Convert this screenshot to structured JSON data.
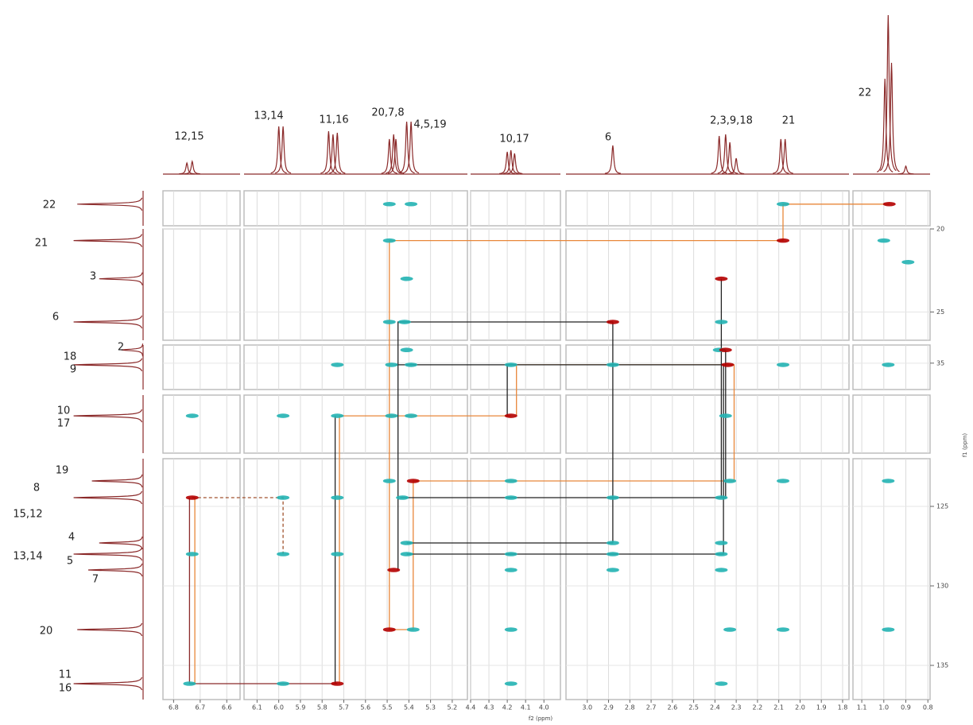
{
  "chart_data": {
    "type": "nmr2d",
    "x_label": "f2 (ppm)",
    "y_label": "f1 (ppm)",
    "xlim": [
      [
        6.84,
        6.55
      ],
      [
        6.16,
        5.13
      ],
      [
        4.4,
        3.91
      ],
      [
        3.1,
        1.77
      ],
      [
        1.14,
        0.79
      ]
    ],
    "ylim": [
      [
        13.5,
        15.6
      ],
      [
        20,
        26.7
      ],
      [
        33.9,
        36.6
      ],
      [
        46,
        49.5
      ],
      [
        122,
        137.15
      ]
    ],
    "xticks": [
      6.8,
      6.7,
      6.6,
      6.1,
      {
        "value": 6,
        "label": "6.0"
      },
      5.9,
      5.8,
      5.7,
      5.6,
      5.5,
      5.4,
      5.3,
      5.2,
      4.4,
      4.3,
      4.2,
      4.1,
      {
        "value": 4,
        "label": "4.0"
      },
      {
        "value": 3,
        "label": "3.0"
      },
      2.9,
      2.8,
      2.7,
      2.6,
      2.5,
      2.4,
      2.3,
      2.2,
      2.1,
      {
        "value": 2,
        "label": "2.0"
      },
      1.9,
      1.8,
      1.1,
      {
        "value": 1,
        "label": "1.0"
      },
      0.9,
      0.8
    ],
    "yticks": [
      20,
      25,
      35,
      125,
      130,
      135
    ],
    "grid": true,
    "projection_color": "#8b2a2a",
    "f2_labels": [
      "12,15",
      "13,14",
      "11,16",
      "20,7,8",
      "4,5,19",
      "10,17",
      "6",
      "2,3,9,18",
      "21",
      "22"
    ],
    "f1_labels": [
      "22",
      "21",
      "3",
      "6",
      "2",
      "18",
      "9",
      "10",
      "17",
      "19",
      "8",
      "15,12",
      "4",
      "13,14",
      "5",
      "7",
      "20",
      "11",
      "16"
    ],
    "f2_projection": [
      {
        "ppm": 6.75,
        "height": 0.07
      },
      {
        "ppm": 6.73,
        "height": 0.08
      },
      {
        "ppm": 6.0,
        "height": 0.3
      },
      {
        "ppm": 5.98,
        "height": 0.3
      },
      {
        "ppm": 5.77,
        "height": 0.27
      },
      {
        "ppm": 5.75,
        "height": 0.25
      },
      {
        "ppm": 5.73,
        "height": 0.26
      },
      {
        "ppm": 5.49,
        "height": 0.22
      },
      {
        "ppm": 5.47,
        "height": 0.25
      },
      {
        "ppm": 5.46,
        "height": 0.22
      },
      {
        "ppm": 5.41,
        "height": 0.33
      },
      {
        "ppm": 5.39,
        "height": 0.33
      },
      {
        "ppm": 4.2,
        "height": 0.14
      },
      {
        "ppm": 4.18,
        "height": 0.15
      },
      {
        "ppm": 4.16,
        "height": 0.13
      },
      {
        "ppm": 2.88,
        "height": 0.18
      },
      {
        "ppm": 2.38,
        "height": 0.24
      },
      {
        "ppm": 2.35,
        "height": 0.25
      },
      {
        "ppm": 2.33,
        "height": 0.2
      },
      {
        "ppm": 2.3,
        "height": 0.1
      },
      {
        "ppm": 2.09,
        "height": 0.22
      },
      {
        "ppm": 2.07,
        "height": 0.22
      },
      {
        "ppm": 0.995,
        "height": 0.6
      },
      {
        "ppm": 0.98,
        "height": 1.0
      },
      {
        "ppm": 0.965,
        "height": 0.7
      },
      {
        "ppm": 0.9,
        "height": 0.05
      }
    ],
    "f1_projection": [
      {
        "ppm": 14.3,
        "height": 0.9
      },
      {
        "ppm": 20.7,
        "height": 0.95
      },
      {
        "ppm": 23.0,
        "height": 0.6
      },
      {
        "ppm": 25.6,
        "height": 0.95
      },
      {
        "ppm": 34.2,
        "height": 0.3
      },
      {
        "ppm": 35.1,
        "height": 0.95
      },
      {
        "ppm": 47.25,
        "height": 0.95
      },
      {
        "ppm": 123.4,
        "height": 0.7
      },
      {
        "ppm": 124.45,
        "height": 0.95
      },
      {
        "ppm": 127.3,
        "height": 0.6
      },
      {
        "ppm": 128.0,
        "height": 0.95
      },
      {
        "ppm": 129.0,
        "height": 0.75
      },
      {
        "ppm": 132.75,
        "height": 0.9
      },
      {
        "ppm": 136.15,
        "height": 0.95
      }
    ],
    "cross_peaks": [
      {
        "x": 5.49,
        "y": 14.3,
        "color": "#22b3b3"
      },
      {
        "x": 5.39,
        "y": 14.3,
        "color": "#22b3b3"
      },
      {
        "x": 2.08,
        "y": 14.3,
        "color": "#22b3b3"
      },
      {
        "x": 0.975,
        "y": 14.3,
        "color": "#b40000"
      },
      {
        "x": 5.49,
        "y": 20.7,
        "color": "#22b3b3"
      },
      {
        "x": 2.08,
        "y": 20.7,
        "color": "#b40000"
      },
      {
        "x": 1.0,
        "y": 20.7,
        "color": "#22b3b3"
      },
      {
        "x": 0.89,
        "y": 22.0,
        "color": "#22b3b3"
      },
      {
        "x": 5.41,
        "y": 23.0,
        "color": "#22b3b3"
      },
      {
        "x": 2.37,
        "y": 23.0,
        "color": "#b40000"
      },
      {
        "x": 5.49,
        "y": 25.6,
        "color": "#22b3b3"
      },
      {
        "x": 5.42,
        "y": 25.6,
        "color": "#22b3b3"
      },
      {
        "x": 2.88,
        "y": 25.6,
        "color": "#b40000"
      },
      {
        "x": 2.37,
        "y": 25.6,
        "color": "#22b3b3"
      },
      {
        "x": 5.41,
        "y": 34.2,
        "color": "#22b3b3"
      },
      {
        "x": 2.38,
        "y": 34.2,
        "color": "#22b3b3"
      },
      {
        "x": 2.35,
        "y": 34.2,
        "color": "#b40000"
      },
      {
        "x": 5.73,
        "y": 35.1,
        "color": "#22b3b3"
      },
      {
        "x": 5.48,
        "y": 35.1,
        "color": "#22b3b3"
      },
      {
        "x": 5.39,
        "y": 35.1,
        "color": "#22b3b3"
      },
      {
        "x": 4.18,
        "y": 35.1,
        "color": "#22b3b3"
      },
      {
        "x": 2.88,
        "y": 35.1,
        "color": "#22b3b3"
      },
      {
        "x": 2.34,
        "y": 35.1,
        "color": "#b40000"
      },
      {
        "x": 2.08,
        "y": 35.1,
        "color": "#22b3b3"
      },
      {
        "x": 0.98,
        "y": 35.1,
        "color": "#22b3b3"
      },
      {
        "x": 6.73,
        "y": 47.25,
        "color": "#22b3b3"
      },
      {
        "x": 5.98,
        "y": 47.25,
        "color": "#22b3b3"
      },
      {
        "x": 5.73,
        "y": 47.25,
        "color": "#22b3b3"
      },
      {
        "x": 5.48,
        "y": 47.25,
        "color": "#22b3b3"
      },
      {
        "x": 5.39,
        "y": 47.25,
        "color": "#22b3b3"
      },
      {
        "x": 4.18,
        "y": 47.25,
        "color": "#b40000"
      },
      {
        "x": 2.35,
        "y": 47.25,
        "color": "#22b3b3"
      },
      {
        "x": 5.49,
        "y": 123.4,
        "color": "#22b3b3"
      },
      {
        "x": 5.38,
        "y": 123.4,
        "color": "#b40000"
      },
      {
        "x": 4.18,
        "y": 123.4,
        "color": "#22b3b3"
      },
      {
        "x": 2.33,
        "y": 123.4,
        "color": "#22b3b3"
      },
      {
        "x": 2.08,
        "y": 123.4,
        "color": "#22b3b3"
      },
      {
        "x": 0.98,
        "y": 123.4,
        "color": "#22b3b3"
      },
      {
        "x": 6.73,
        "y": 124.45,
        "color": "#b40000"
      },
      {
        "x": 5.98,
        "y": 124.45,
        "color": "#22b3b3"
      },
      {
        "x": 5.73,
        "y": 124.45,
        "color": "#22b3b3"
      },
      {
        "x": 5.43,
        "y": 124.45,
        "color": "#22b3b3"
      },
      {
        "x": 4.18,
        "y": 124.45,
        "color": "#22b3b3"
      },
      {
        "x": 2.88,
        "y": 124.45,
        "color": "#22b3b3"
      },
      {
        "x": 2.37,
        "y": 124.45,
        "color": "#22b3b3"
      },
      {
        "x": 5.41,
        "y": 127.3,
        "color": "#22b3b3"
      },
      {
        "x": 2.88,
        "y": 127.3,
        "color": "#22b3b3"
      },
      {
        "x": 2.37,
        "y": 127.3,
        "color": "#22b3b3"
      },
      {
        "x": 6.73,
        "y": 128.0,
        "color": "#22b3b3"
      },
      {
        "x": 5.98,
        "y": 128.0,
        "color": "#22b3b3"
      },
      {
        "x": 5.73,
        "y": 128.0,
        "color": "#22b3b3"
      },
      {
        "x": 5.41,
        "y": 128.0,
        "color": "#22b3b3"
      },
      {
        "x": 4.18,
        "y": 128.0,
        "color": "#22b3b3"
      },
      {
        "x": 2.88,
        "y": 128.0,
        "color": "#22b3b3"
      },
      {
        "x": 2.37,
        "y": 128.0,
        "color": "#22b3b3"
      },
      {
        "x": 5.47,
        "y": 129.0,
        "color": "#b40000"
      },
      {
        "x": 4.18,
        "y": 129.0,
        "color": "#22b3b3"
      },
      {
        "x": 2.88,
        "y": 129.0,
        "color": "#22b3b3"
      },
      {
        "x": 2.37,
        "y": 129.0,
        "color": "#22b3b3"
      },
      {
        "x": 5.49,
        "y": 132.75,
        "color": "#b40000"
      },
      {
        "x": 5.38,
        "y": 132.75,
        "color": "#22b3b3"
      },
      {
        "x": 4.18,
        "y": 132.75,
        "color": "#22b3b3"
      },
      {
        "x": 2.33,
        "y": 132.75,
        "color": "#22b3b3"
      },
      {
        "x": 2.08,
        "y": 132.75,
        "color": "#22b3b3"
      },
      {
        "x": 0.98,
        "y": 132.75,
        "color": "#22b3b3"
      },
      {
        "x": 6.74,
        "y": 136.15,
        "color": "#22b3b3"
      },
      {
        "x": 5.98,
        "y": 136.15,
        "color": "#22b3b3"
      },
      {
        "x": 5.73,
        "y": 136.15,
        "color": "#b40000"
      },
      {
        "x": 4.18,
        "y": 136.15,
        "color": "#22b3b3"
      },
      {
        "x": 2.37,
        "y": 136.15,
        "color": "#22b3b3"
      }
    ],
    "connections": [
      {
        "color": "#e8873a",
        "dashed": false,
        "x": [
          0.975,
          2.08,
          2.08,
          5.49,
          5.49,
          5.38,
          5.38,
          2.31,
          2.31,
          4.15,
          4.15
        ],
        "y": [
          14.3,
          14.3,
          20.7,
          20.7,
          132.75,
          132.75,
          123.4,
          123.4,
          35.1,
          35.1,
          47.25
        ]
      },
      {
        "color": "#e8873a",
        "dashed": false,
        "x": [
          4.18,
          5.72,
          5.72
        ],
        "y": [
          47.25,
          47.25,
          136.15
        ]
      },
      {
        "color": "#222222",
        "dashed": false,
        "x": [
          2.88,
          5.45,
          5.45
        ],
        "y": [
          25.6,
          25.6,
          129.0
        ]
      },
      {
        "color": "#222222",
        "dashed": false,
        "x": [
          5.46,
          2.36,
          2.36,
          5.41
        ],
        "y": [
          35.1,
          35.1,
          128.0,
          128.0
        ]
      },
      {
        "color": "#222222",
        "dashed": false,
        "x": [
          2.88,
          2.88,
          5.41
        ],
        "y": [
          25.6,
          127.3,
          127.3
        ]
      },
      {
        "color": "#222222",
        "dashed": false,
        "x": [
          2.35,
          2.35,
          5.44
        ],
        "y": [
          34.2,
          124.45,
          124.45
        ]
      },
      {
        "color": "#222222",
        "dashed": false,
        "x": [
          2.37,
          2.37
        ],
        "y": [
          23.0,
          124.45
        ]
      },
      {
        "color": "#222222",
        "dashed": false,
        "x": [
          4.2,
          4.2
        ],
        "y": [
          35.1,
          47.25
        ]
      },
      {
        "color": "#222222",
        "dashed": false,
        "x": [
          5.74,
          5.74
        ],
        "y": [
          47.25,
          136.15
        ]
      },
      {
        "color": "#8b2a2a",
        "dashed": false,
        "x": [
          6.74,
          6.74,
          5.73
        ],
        "y": [
          124.45,
          136.15,
          136.15
        ]
      },
      {
        "color": "#e8873a",
        "dashed": false,
        "x": [
          6.72,
          6.72
        ],
        "y": [
          124.45,
          136.15
        ]
      },
      {
        "color": "#a0522d",
        "dashed": true,
        "x": [
          6.73,
          5.98,
          5.98
        ],
        "y": [
          124.45,
          124.45,
          128.0
        ]
      }
    ]
  }
}
